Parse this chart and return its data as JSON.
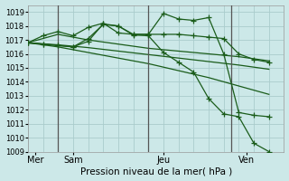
{
  "xlabel": "Pression niveau de la mer( hPa )",
  "bg_color": "#cce8e8",
  "grid_color": "#aacccc",
  "line_color": "#1a5c1a",
  "ylim": [
    1009,
    1019.5
  ],
  "yticks": [
    1009,
    1010,
    1011,
    1012,
    1013,
    1014,
    1015,
    1016,
    1017,
    1018,
    1019
  ],
  "xlim": [
    0,
    17
  ],
  "day_labels": [
    "Mer",
    "Sam",
    "Jeu",
    "Ven"
  ],
  "day_positions": [
    0.5,
    3,
    9,
    14.5
  ],
  "vline_positions": [
    2,
    8,
    13.5
  ],
  "lines": [
    {
      "x": [
        0,
        2,
        4,
        6,
        8,
        10,
        12,
        14,
        16
      ],
      "y": [
        1016.8,
        1016.5,
        1016.1,
        1015.7,
        1015.3,
        1014.8,
        1014.3,
        1013.7,
        1013.1
      ],
      "marker": false
    },
    {
      "x": [
        0,
        2,
        4,
        6,
        8,
        10,
        12,
        14,
        16
      ],
      "y": [
        1016.8,
        1016.65,
        1016.45,
        1016.2,
        1015.95,
        1015.7,
        1015.45,
        1015.2,
        1014.9
      ],
      "marker": false
    },
    {
      "x": [
        0,
        1,
        2,
        3,
        4,
        6,
        8,
        10,
        12,
        14,
        16
      ],
      "y": [
        1016.8,
        1017.1,
        1017.4,
        1017.2,
        1017.0,
        1016.7,
        1016.4,
        1016.2,
        1016.0,
        1015.8,
        1015.5
      ],
      "marker": false
    },
    {
      "x": [
        0,
        1,
        2,
        3,
        4,
        5,
        6,
        7,
        8,
        9,
        10,
        11,
        12,
        13,
        14,
        15,
        16
      ],
      "y": [
        1016.8,
        1017.3,
        1017.6,
        1017.3,
        1017.9,
        1018.2,
        1017.5,
        1017.4,
        1017.4,
        1017.4,
        1017.4,
        1017.3,
        1017.2,
        1017.1,
        1016.0,
        1015.6,
        1015.4
      ],
      "marker": true
    },
    {
      "x": [
        0,
        1,
        2,
        3,
        4,
        5,
        6,
        7,
        8,
        9,
        10,
        11,
        12,
        13,
        14,
        15,
        16
      ],
      "y": [
        1016.8,
        1016.7,
        1016.6,
        1016.5,
        1017.1,
        1018.1,
        1018.0,
        1017.4,
        1017.4,
        1018.9,
        1018.5,
        1018.4,
        1018.6,
        1016.0,
        1011.8,
        1011.6,
        1011.5
      ],
      "marker": true
    },
    {
      "x": [
        0,
        1,
        2,
        3,
        4,
        5,
        6,
        7,
        8,
        9,
        10,
        11,
        12,
        13,
        14,
        15,
        16
      ],
      "y": [
        1016.8,
        1016.7,
        1016.6,
        1016.5,
        1016.9,
        1018.15,
        1018.0,
        1017.35,
        1017.3,
        1016.1,
        1015.4,
        1014.7,
        1012.8,
        1011.7,
        1011.5,
        1009.6,
        1009.0
      ],
      "marker": true
    }
  ]
}
